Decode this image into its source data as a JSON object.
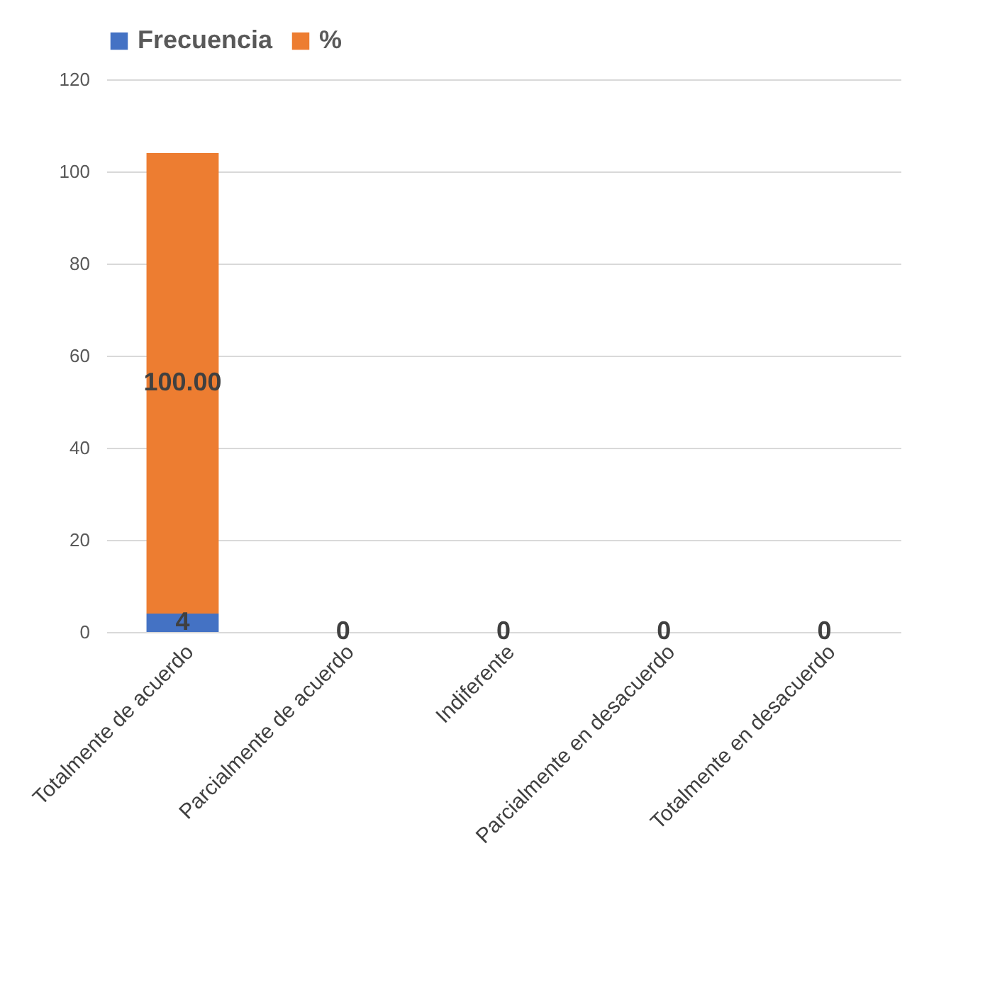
{
  "chart_data": {
    "type": "bar",
    "stacked": true,
    "categories": [
      "Totalmente de acuerdo",
      "Parcialmente de acuerdo",
      "Indiferente",
      "Parcialmente en desacuerdo",
      "Totalmente en desacuerdo"
    ],
    "series": [
      {
        "name": "Frecuencia",
        "color": "#4472c4",
        "values": [
          4,
          0,
          0,
          0,
          0
        ],
        "value_labels": [
          "4",
          "0",
          "0",
          "0",
          "0"
        ]
      },
      {
        "name": "%",
        "color": "#ed7d31",
        "values": [
          100,
          0,
          0,
          0,
          0
        ],
        "value_labels": [
          "100.00",
          null,
          null,
          null,
          null
        ]
      }
    ],
    "ylim": [
      0,
      120
    ],
    "yticks": [
      0,
      20,
      40,
      60,
      80,
      100,
      120
    ],
    "grid": "y",
    "legend": "top"
  }
}
